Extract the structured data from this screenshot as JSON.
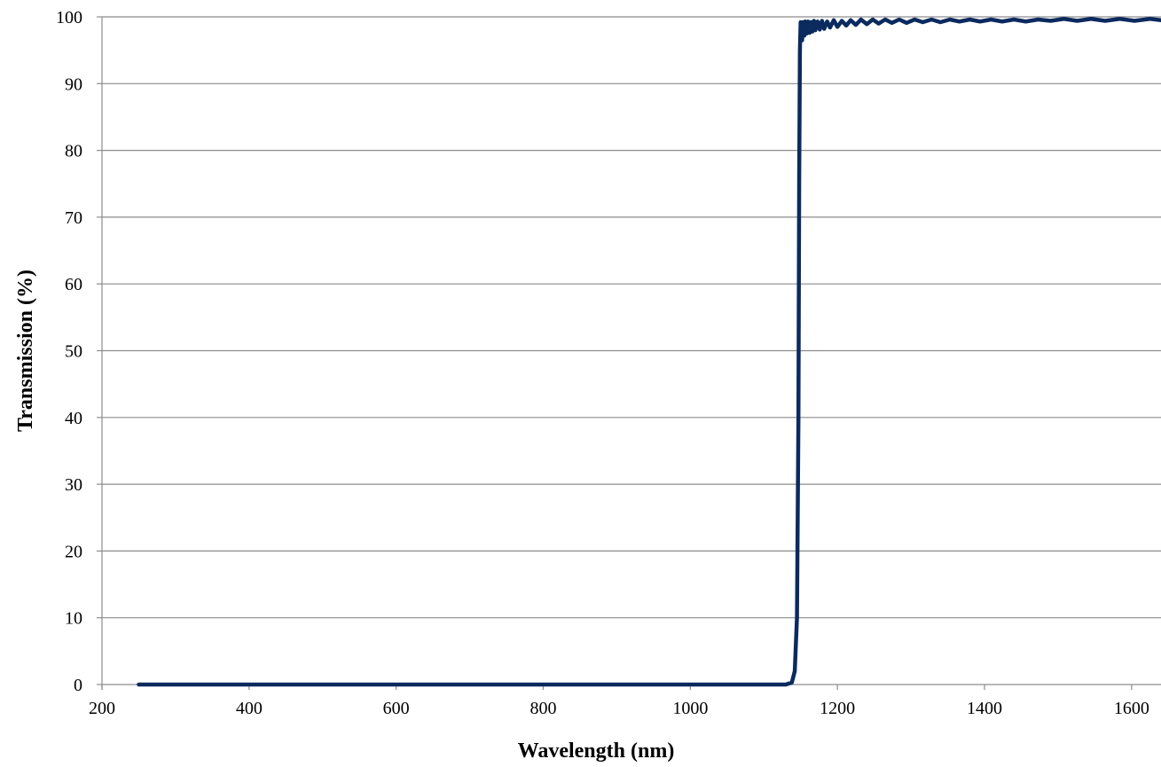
{
  "chart_data": {
    "type": "line",
    "title": "",
    "xlabel": "Wavelength (nm)",
    "ylabel": "Transmission (%)",
    "xlim": [
      200,
      1640
    ],
    "ylim": [
      0,
      100
    ],
    "x_ticks": [
      200,
      400,
      600,
      800,
      1000,
      1200,
      1400,
      1600
    ],
    "y_ticks": [
      0,
      10,
      20,
      30,
      40,
      50,
      60,
      70,
      80,
      90,
      100
    ],
    "grid": "horizontal",
    "legend": "none",
    "series_color": "#0b2a5e",
    "series": [
      {
        "x": [
          250,
          1000,
          1130,
          1138,
          1142,
          1145,
          1147,
          1148,
          1149,
          1150,
          1151,
          1152,
          1153,
          1154,
          1155,
          1156,
          1157,
          1158,
          1159,
          1160,
          1162,
          1164,
          1166,
          1168,
          1170,
          1173,
          1176,
          1179,
          1182,
          1186,
          1190,
          1195,
          1200,
          1206,
          1212,
          1218,
          1225,
          1232,
          1240,
          1248,
          1256,
          1265,
          1274,
          1284,
          1294,
          1305,
          1316,
          1328,
          1340,
          1353,
          1366,
          1380,
          1394,
          1409,
          1424,
          1440,
          1456,
          1473,
          1490,
          1508,
          1526,
          1545,
          1564,
          1584,
          1604,
          1625,
          1640
        ],
        "y": [
          0,
          0,
          0,
          0.3,
          2,
          10,
          40,
          75,
          95,
          99.2,
          98.6,
          96.5,
          99.2,
          98.8,
          97.2,
          99.3,
          98.5,
          97.5,
          98.8,
          99.3,
          97.6,
          99.2,
          97.8,
          99.4,
          98,
          99.3,
          98.1,
          99.4,
          98.2,
          99.3,
          98.4,
          99.5,
          98.5,
          99.4,
          98.7,
          99.5,
          98.8,
          99.6,
          98.9,
          99.6,
          99,
          99.6,
          99.1,
          99.6,
          99.1,
          99.6,
          99.2,
          99.6,
          99.2,
          99.6,
          99.3,
          99.6,
          99.3,
          99.6,
          99.3,
          99.6,
          99.3,
          99.6,
          99.4,
          99.7,
          99.4,
          99.7,
          99.4,
          99.7,
          99.4,
          99.7,
          99.5
        ]
      }
    ]
  }
}
